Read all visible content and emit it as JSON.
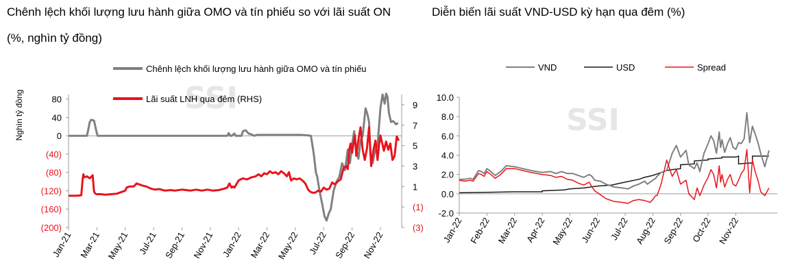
{
  "colors": {
    "gray": "#808080",
    "red": "#e8131c",
    "black": "#1a1a1a",
    "axis": "#999999"
  },
  "watermark": "SSI",
  "chart_data": [
    {
      "type": "line",
      "title": "Chênh lệch khối lượng lưu hành giữa OMO và tín phiếu so với lãi suất ON",
      "subtitle": "(%, nghìn tỷ đồng)",
      "ylabel": "Nghìn tỷ đồng",
      "ylim": [
        -200,
        90
      ],
      "yticks": [
        80,
        40,
        0,
        -40,
        -80,
        -120,
        -160,
        -200
      ],
      "ytick_labels": [
        "80",
        "40",
        "0",
        "(40)",
        "(80)",
        "(120)",
        "(160)",
        "(200)"
      ],
      "y2lim": [
        -3,
        10
      ],
      "y2ticks": [
        9,
        7,
        5,
        3,
        1,
        -1,
        -3
      ],
      "y2tick_labels": [
        "9",
        "7",
        "5",
        "3",
        "1",
        "(1)",
        "(3)"
      ],
      "xlim": [
        0,
        23.5
      ],
      "categories": [
        "Jan-21",
        "Mar-21",
        "May-21",
        "Jul-21",
        "Sep-21",
        "Nov-21",
        "Jan-22",
        "Mar-22",
        "May-22",
        "Jul-22",
        "Sep-22",
        "Nov-22"
      ],
      "category_x": [
        0,
        2,
        4,
        6,
        8,
        10,
        12,
        14,
        16,
        18,
        20,
        22
      ],
      "series": [
        {
          "name": "Chênh lệch khối lượng lưu hành giữa OMO và tín phiếu",
          "axis": "left",
          "color": "gray",
          "x": [
            0,
            1.3,
            1.5,
            1.6,
            1.8,
            1.95,
            2.05,
            2.2,
            11.2,
            11.3,
            11.4,
            11.5,
            11.7,
            11.8,
            12.2,
            12.3,
            12.5,
            12.7,
            12.9,
            13.1,
            13.3,
            13.5,
            13.8,
            14.2,
            14.6,
            15.0,
            15.5,
            16.0,
            16.4,
            16.8,
            17.1,
            17.3,
            17.45,
            17.55,
            17.7,
            17.9,
            18.05,
            18.2,
            18.35,
            18.5,
            18.7,
            18.9,
            19.1,
            19.3,
            19.5,
            19.7,
            19.85,
            20.0,
            20.15,
            20.3,
            20.45,
            20.6,
            20.75,
            20.85,
            20.95,
            21.1,
            21.2,
            21.3,
            21.45,
            21.6,
            21.8,
            22.0,
            22.15,
            22.3,
            22.4,
            22.5,
            22.6,
            22.75,
            22.9,
            23.1,
            23.25
          ],
          "values": [
            0,
            0,
            30,
            35,
            33,
            12,
            0,
            0,
            0,
            6,
            0,
            0,
            5,
            0,
            0,
            10,
            12,
            5,
            3,
            0,
            2,
            2,
            2,
            2,
            2,
            2,
            2,
            2,
            2,
            1,
            0,
            -40,
            -80,
            -90,
            -120,
            -150,
            -175,
            -185,
            -170,
            -160,
            -120,
            -100,
            -90,
            -60,
            -75,
            -30,
            -60,
            -20,
            10,
            -30,
            -50,
            -10,
            0,
            30,
            60,
            45,
            30,
            -40,
            -60,
            -35,
            -20,
            60,
            90,
            70,
            92,
            85,
            50,
            30,
            32,
            25,
            28
          ]
        },
        {
          "name": "Lãi suất LNH qua đêm (RHS)",
          "axis": "right",
          "color": "red",
          "x": [
            0,
            0.3,
            0.6,
            0.9,
            1.0,
            1.05,
            1.1,
            1.3,
            1.5,
            1.7,
            1.8,
            1.9,
            2.0,
            2.1,
            2.3,
            2.6,
            3.0,
            3.4,
            3.8,
            4.0,
            4.1,
            4.3,
            4.6,
            4.8,
            5.2,
            5.5,
            5.8,
            6.1,
            6.4,
            6.8,
            7.2,
            7.5,
            8.0,
            8.3,
            8.6,
            9.0,
            9.4,
            9.8,
            10.2,
            10.6,
            11.0,
            11.2,
            11.35,
            11.5,
            11.6,
            11.7,
            12.0,
            12.3,
            12.6,
            12.9,
            13.2,
            13.4,
            13.6,
            13.8,
            14.0,
            14.2,
            14.4,
            14.6,
            14.8,
            15.0,
            15.2,
            15.4,
            15.55,
            15.7,
            15.9,
            16.1,
            16.3,
            16.5,
            16.7,
            16.9,
            17.05,
            17.2,
            17.4,
            17.6,
            17.8,
            18.0,
            18.2,
            18.4,
            18.6,
            18.8,
            19.0,
            19.2,
            19.4,
            19.6,
            19.7,
            19.8,
            19.9,
            20.0,
            20.1,
            20.2,
            20.3,
            20.45,
            20.6,
            20.75,
            20.9,
            21.05,
            21.2,
            21.35,
            21.5,
            21.65,
            21.8,
            21.9,
            22.0,
            22.1,
            22.25,
            22.4,
            22.55,
            22.7,
            22.85,
            23.0,
            23.15,
            23.3
          ],
          "values": [
            0.1,
            0.1,
            0.1,
            0.15,
            1.8,
            2.2,
            1.9,
            2.0,
            1.8,
            2.1,
            0.5,
            0.3,
            0.25,
            0.25,
            0.25,
            0.2,
            0.25,
            0.3,
            0.5,
            0.6,
            0.9,
            1.0,
            1.0,
            1.3,
            1.1,
            1.0,
            0.8,
            0.7,
            0.75,
            0.6,
            0.65,
            0.6,
            0.7,
            0.65,
            0.6,
            0.7,
            0.6,
            0.7,
            0.6,
            0.65,
            0.8,
            0.9,
            1.3,
            0.9,
            1.0,
            0.9,
            1.6,
            1.8,
            1.7,
            1.9,
            2.0,
            2.2,
            2.0,
            2.3,
            2.2,
            2.5,
            2.3,
            2.4,
            2.2,
            2.5,
            2.3,
            2.0,
            2.4,
            1.6,
            1.8,
            1.7,
            1.8,
            1.6,
            1.3,
            0.7,
            0.5,
            0.4,
            0.4,
            0.6,
            0.5,
            0.9,
            0.7,
            0.8,
            1.4,
            1.2,
            1.5,
            1.7,
            2.8,
            3.0,
            2.7,
            4.6,
            5.2,
            4.3,
            5.2,
            6.0,
            4.0,
            5.6,
            6.8,
            4.6,
            3.6,
            4.7,
            6.8,
            3.0,
            4.5,
            5.5,
            3.6,
            5.0,
            6.0,
            5.4,
            4.5,
            5.4,
            4.6,
            5.2,
            3.6,
            4.0,
            5.9,
            5.5
          ]
        }
      ]
    },
    {
      "type": "line",
      "title": "Diễn biến lãi suất VND-USD kỳ hạn qua đêm (%)",
      "ylim": [
        -2.0,
        10.0
      ],
      "yticks": [
        10.0,
        8.0,
        6.0,
        4.0,
        2.0,
        0.0,
        -2.0
      ],
      "ytick_labels": [
        "10.0",
        "8.0",
        "6.0",
        "4.0",
        "2.0",
        "0.0",
        "-2.0"
      ],
      "xlim": [
        0,
        11.5
      ],
      "categories": [
        "Jan-22",
        "Feb-22",
        "Mar-22",
        "Apr-22",
        "May-22",
        "Jun-22",
        "Jul-22",
        "Aug-22",
        "Sep-22",
        "Oct-22",
        "Nov-22"
      ],
      "category_x": [
        0,
        1,
        2,
        3,
        4,
        5,
        6,
        7,
        8,
        9,
        10
      ],
      "series": [
        {
          "name": "VND",
          "color": "gray",
          "x": [
            0,
            0.2,
            0.4,
            0.5,
            0.7,
            0.8,
            0.9,
            1.0,
            1.1,
            1.3,
            1.5,
            1.7,
            2.0,
            2.3,
            2.6,
            3.0,
            3.3,
            3.5,
            3.7,
            3.9,
            4.1,
            4.3,
            4.5,
            4.7,
            4.8,
            4.9,
            5.1,
            5.3,
            5.6,
            5.9,
            6.1,
            6.3,
            6.5,
            6.7,
            6.8,
            6.9,
            7.0,
            7.1,
            7.15,
            7.3,
            7.5,
            7.7,
            7.85,
            8.0,
            8.2,
            8.3,
            8.5,
            8.6,
            8.7,
            8.85,
            9.0,
            9.1,
            9.2,
            9.3,
            9.4,
            9.45,
            9.5,
            9.6,
            9.7,
            9.8,
            9.9,
            10.0,
            10.1,
            10.2,
            10.3,
            10.4,
            10.5,
            10.6,
            10.7,
            10.8,
            10.9,
            11.05,
            11.2
          ],
          "values": [
            1.5,
            1.5,
            1.6,
            1.5,
            2.4,
            2.3,
            2.1,
            2.6,
            2.4,
            1.9,
            2.3,
            2.9,
            2.8,
            2.6,
            2.4,
            2.2,
            2.3,
            2.1,
            2.3,
            2.1,
            2.1,
            1.9,
            1.7,
            2.0,
            1.8,
            1.4,
            1.3,
            1.0,
            0.7,
            0.6,
            0.5,
            0.8,
            1.0,
            1.3,
            1.0,
            1.2,
            1.4,
            1.6,
            1.8,
            2.2,
            2.4,
            4.2,
            5.0,
            3.8,
            4.5,
            3.0,
            2.6,
            3.2,
            2.3,
            4.2,
            5.2,
            6.0,
            5.5,
            4.2,
            6.4,
            4.8,
            5.6,
            4.3,
            5.2,
            5.8,
            4.8,
            4.6,
            5.3,
            5.2,
            5.7,
            8.4,
            5.3,
            7.0,
            6.2,
            5.3,
            4.2,
            2.8,
            4.5
          ]
        },
        {
          "name": "USD",
          "color": "black",
          "x": [
            0,
            1.0,
            2.0,
            3.0,
            3.0,
            3.8,
            4.0,
            4.5,
            5.0,
            5.5,
            6.0,
            6.5,
            6.7,
            7.0,
            7.3,
            7.5,
            7.7,
            8.0,
            8.0,
            8.5,
            8.5,
            9.0,
            9.0,
            9.5,
            9.5,
            10.0,
            10.1,
            10.1,
            10.6,
            10.6,
            11.2
          ],
          "values": [
            0.1,
            0.15,
            0.2,
            0.2,
            0.3,
            0.4,
            0.5,
            0.6,
            0.8,
            0.9,
            1.2,
            1.5,
            1.7,
            1.9,
            2.2,
            2.4,
            2.5,
            2.6,
            3.0,
            3.1,
            3.4,
            3.5,
            3.6,
            3.7,
            3.8,
            3.8,
            3.9,
            3.1,
            3.2,
            3.9,
            3.9
          ]
        },
        {
          "name": "Spread",
          "color": "red",
          "x": [
            0,
            0.2,
            0.4,
            0.5,
            0.7,
            0.8,
            0.9,
            1.0,
            1.1,
            1.3,
            1.5,
            1.7,
            2.0,
            2.3,
            2.6,
            3.0,
            3.3,
            3.5,
            3.7,
            3.9,
            4.1,
            4.3,
            4.5,
            4.7,
            4.8,
            4.9,
            5.1,
            5.3,
            5.6,
            5.9,
            6.1,
            6.3,
            6.5,
            6.7,
            6.8,
            6.9,
            7.0,
            7.1,
            7.15,
            7.3,
            7.5,
            7.7,
            7.85,
            8.0,
            8.2,
            8.3,
            8.5,
            8.6,
            8.7,
            8.85,
            9.0,
            9.1,
            9.2,
            9.3,
            9.4,
            9.45,
            9.5,
            9.6,
            9.7,
            9.8,
            9.9,
            10.0,
            10.1,
            10.2,
            10.3,
            10.4,
            10.5,
            10.6,
            10.7,
            10.8,
            10.9,
            11.05,
            11.2
          ],
          "values": [
            1.4,
            1.3,
            1.4,
            1.3,
            2.1,
            2.0,
            1.8,
            2.3,
            2.1,
            1.6,
            2.0,
            2.6,
            2.6,
            2.4,
            2.2,
            2.0,
            1.9,
            1.7,
            1.8,
            1.5,
            1.4,
            1.1,
            0.9,
            1.2,
            0.7,
            0.3,
            -0.1,
            -0.5,
            -0.8,
            -0.9,
            -1.0,
            -0.7,
            -0.6,
            -0.7,
            -0.8,
            -0.9,
            -0.6,
            -0.2,
            -0.2,
            1.0,
            3.5,
            1.8,
            2.5,
            1.0,
            1.4,
            0.0,
            -0.6,
            0.6,
            -0.2,
            0.9,
            1.7,
            2.5,
            2.0,
            0.6,
            2.9,
            1.2,
            2.0,
            0.7,
            1.5,
            2.0,
            1.0,
            0.8,
            1.4,
            2.1,
            2.5,
            4.6,
            0.1,
            3.5,
            2.3,
            1.4,
            0.2,
            -0.2,
            0.6
          ]
        }
      ]
    }
  ]
}
